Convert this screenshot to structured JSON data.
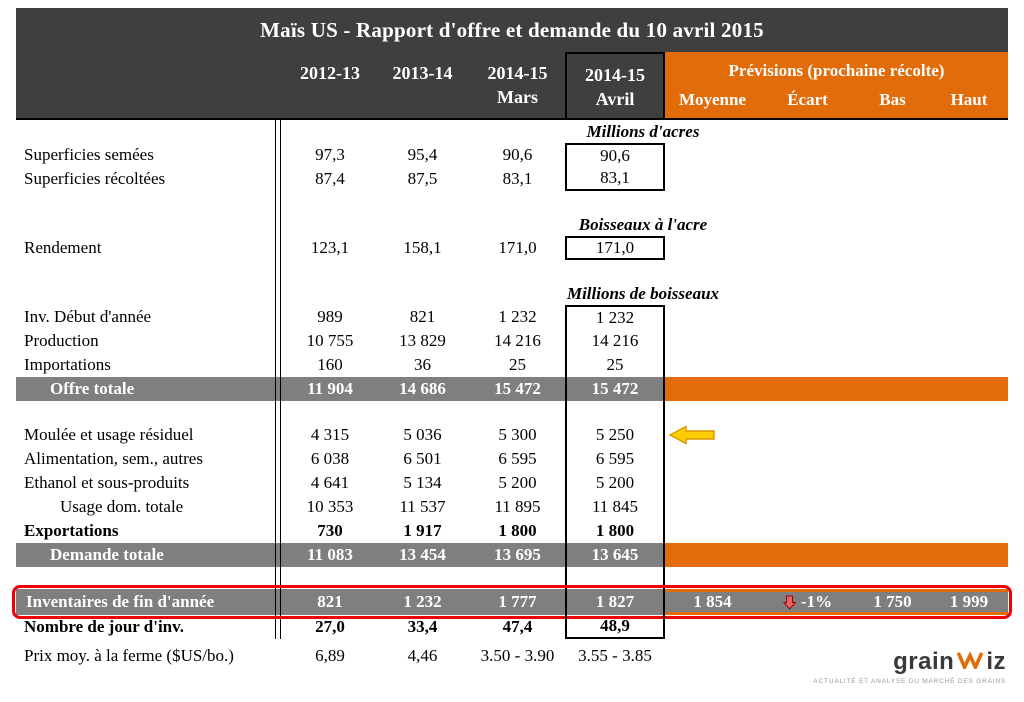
{
  "title": "Maïs US - Rapport d'offre et demande du 10 avril 2015",
  "header": {
    "years": [
      {
        "line1": "2012-13",
        "line2": ""
      },
      {
        "line1": "2013-14",
        "line2": ""
      },
      {
        "line1": "2014-15",
        "line2": "Mars"
      },
      {
        "line1": "2014-15",
        "line2": "Avril"
      }
    ],
    "previsions_label": "Prévisions (prochaine récolte)",
    "previsions_columns": [
      "Moyenne",
      "Écart",
      "Bas",
      "Haut"
    ]
  },
  "rows": [
    {
      "type": "unit",
      "text": "Millions d'acres"
    },
    {
      "type": "data",
      "label": "Superficies semées",
      "values": [
        "97,3",
        "95,4",
        "90,6",
        "90,6"
      ],
      "box": "top"
    },
    {
      "type": "data",
      "label": "Superficies récoltées",
      "values": [
        "87,4",
        "87,5",
        "83,1",
        "83,1"
      ],
      "box": "bottom"
    },
    {
      "type": "spacer"
    },
    {
      "type": "unit",
      "text": "Boisseaux à l'acre"
    },
    {
      "type": "data",
      "label": "Rendement",
      "values": [
        "123,1",
        "158,1",
        "171,0",
        "171,0"
      ],
      "box": "single"
    },
    {
      "type": "spacer"
    },
    {
      "type": "unit",
      "text": "Millions de boisseaux"
    },
    {
      "type": "data",
      "label": "Inv. Début d'année",
      "values": [
        "989",
        "821",
        "1 232",
        "1 232"
      ],
      "box": "top"
    },
    {
      "type": "data",
      "label": "Production",
      "values": [
        "10 755",
        "13 829",
        "14 216",
        "14 216"
      ],
      "box": "mid"
    },
    {
      "type": "data",
      "label": "Importations",
      "values": [
        "160",
        "36",
        "25",
        "25"
      ],
      "box": "mid"
    },
    {
      "type": "total",
      "label": "Offre totale",
      "values": [
        "11 904",
        "14 686",
        "15 472",
        "15 472"
      ],
      "box": "mid"
    },
    {
      "type": "spacer",
      "box": "mid"
    },
    {
      "type": "data",
      "label": "Moulée et usage résiduel",
      "values": [
        "4 315",
        "5 036",
        "5 300",
        "5 250"
      ],
      "box": "mid",
      "arrow": true
    },
    {
      "type": "data",
      "label": "Alimentation, sem., autres",
      "values": [
        "6 038",
        "6 501",
        "6 595",
        "6 595"
      ],
      "box": "mid"
    },
    {
      "type": "data",
      "label": "Ethanol et sous-produits",
      "values": [
        "4 641",
        "5 134",
        "5 200",
        "5 200"
      ],
      "box": "mid"
    },
    {
      "type": "data",
      "label": "Usage dom. totale",
      "values": [
        "10 353",
        "11 537",
        "11 895",
        "11 845"
      ],
      "box": "mid",
      "indent": true
    },
    {
      "type": "data",
      "label": "Exportations",
      "values": [
        "730",
        "1 917",
        "1 800",
        "1 800"
      ],
      "box": "mid",
      "bold": true
    },
    {
      "type": "total",
      "label": "Demande totale",
      "values": [
        "11 083",
        "13 454",
        "13 695",
        "13 645"
      ],
      "box": "mid"
    },
    {
      "type": "spacer",
      "box": "mid"
    },
    {
      "type": "inventory",
      "label": "Inventaires de fin d'année",
      "values": [
        "821",
        "1 232",
        "1 777",
        "1 827"
      ],
      "box": "mid",
      "previsions": {
        "moyenne": "1 854",
        "ecart": "-1%",
        "bas": "1 750",
        "haut": "1 999"
      }
    },
    {
      "type": "data",
      "label": "Nombre de jour d'inv.",
      "values": [
        "27,0",
        "33,4",
        "47,4",
        "48,9"
      ],
      "box": "bottom",
      "bold": true
    },
    {
      "type": "data",
      "label": "Prix moy. à la ferme ($US/bo.)",
      "values": [
        "6,89",
        "4,46",
        "3.50 - 3.90",
        "3.55 - 3.85"
      ],
      "box": "none",
      "nodiv": true,
      "tall": true
    }
  ],
  "icons": {
    "yellow_arrow": "left-block-arrow",
    "red_arrow": "down-block-arrow"
  },
  "colors": {
    "header_gray": "#3F3F3F",
    "orange": "#E36C0A",
    "row_gray": "#7F7F7F",
    "red_frame": "#F00000",
    "arrow_yellow": "#FFCC00"
  },
  "logo": {
    "part1": "grain",
    "part2": "iz",
    "tagline": "ACTUALITÉ ET ANALYSE DU MARCHÉ DES GRAINS"
  }
}
